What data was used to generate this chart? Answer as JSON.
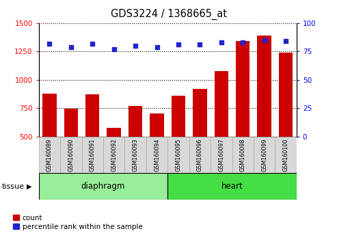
{
  "title": "GDS3224 / 1368665_at",
  "samples": [
    "GSM160089",
    "GSM160090",
    "GSM160091",
    "GSM160092",
    "GSM160093",
    "GSM160094",
    "GSM160095",
    "GSM160096",
    "GSM160097",
    "GSM160098",
    "GSM160099",
    "GSM160100"
  ],
  "counts": [
    880,
    748,
    875,
    580,
    770,
    705,
    860,
    920,
    1075,
    1340,
    1390,
    1240
  ],
  "percentiles": [
    82,
    79,
    82,
    77,
    80,
    79,
    81,
    81,
    83,
    83,
    85,
    84
  ],
  "tissue_groups": [
    {
      "label": "diaphragm",
      "start": 0,
      "end": 6,
      "color": "#99ee99"
    },
    {
      "label": "heart",
      "start": 6,
      "end": 12,
      "color": "#44dd44"
    }
  ],
  "ylim_left": [
    500,
    1500
  ],
  "ylim_right": [
    0,
    100
  ],
  "yticks_left": [
    500,
    750,
    1000,
    1250,
    1500
  ],
  "yticks_right": [
    0,
    25,
    50,
    75,
    100
  ],
  "bar_color": "#cc0000",
  "dot_color": "#2222cc",
  "sample_box_color": "#d8d8d8",
  "tissue_label": "tissue",
  "legend_count": "count",
  "legend_percentile": "percentile rank within the sample"
}
